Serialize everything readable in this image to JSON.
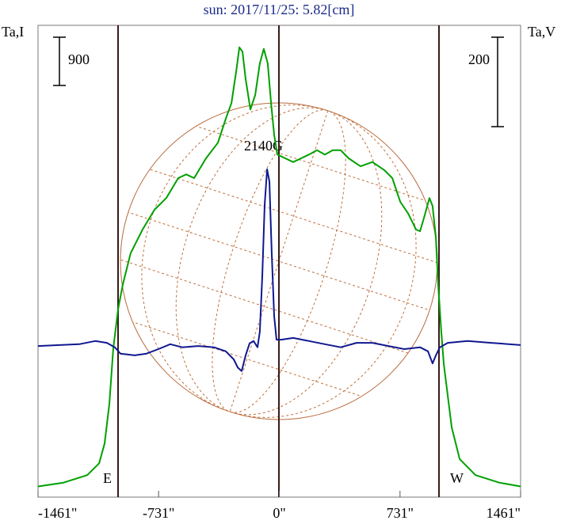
{
  "chart_data": {
    "type": "line",
    "title": "sun: 2017/11/25: 5.82[cm]",
    "y_label": "Ta,I",
    "y2_label": "Ta,V",
    "annotation": "2140G",
    "east_label": "E",
    "west_label": "W",
    "i_scale": 900,
    "v_scale": 200,
    "xlim": [
      -1461,
      1461
    ],
    "xticks": [
      {
        "value": -1461,
        "label": "-1461\""
      },
      {
        "value": -731,
        "label": "-731\""
      },
      {
        "value": 0,
        "label": "0\""
      },
      {
        "value": 731,
        "label": "731\""
      },
      {
        "value": 1461,
        "label": "1461\""
      }
    ],
    "ylim": [
      -200,
      8600
    ],
    "y2lim": [
      -340,
      715
    ],
    "series": [
      {
        "color": "#00a000",
        "axis": "y",
        "x": [
          -1461,
          -1307,
          -1163,
          -1091,
          -1058,
          -1029,
          -1005,
          -976,
          -948,
          -900,
          -828,
          -756,
          -684,
          -612,
          -564,
          -516,
          -444,
          -372,
          -324,
          -290,
          -261,
          -242,
          -223,
          -204,
          -175,
          -146,
          -118,
          -94,
          -70,
          -50,
          -31,
          -12,
          36,
          84,
          132,
          180,
          228,
          276,
          324,
          372,
          420,
          492,
          564,
          636,
          684,
          732,
          780,
          828,
          852,
          876,
          909,
          928,
          948,
          962,
          981,
          996,
          1020,
          1044,
          1092,
          1188,
          1332,
          1461
        ],
        "values": [
          0,
          70,
          210,
          430,
          800,
          1540,
          2580,
          3310,
          3760,
          4350,
          4790,
          5160,
          5380,
          5750,
          5820,
          5750,
          6120,
          6410,
          6860,
          7150,
          7740,
          8190,
          8110,
          7600,
          7030,
          7300,
          7890,
          8160,
          7890,
          7150,
          6560,
          6190,
          6120,
          6050,
          6120,
          6190,
          6270,
          6190,
          6270,
          6270,
          6120,
          5970,
          6050,
          5900,
          5750,
          5310,
          5090,
          4790,
          4760,
          5010,
          5380,
          5230,
          4640,
          3760,
          2870,
          2280,
          1690,
          1100,
          510,
          210,
          70,
          0
        ]
      },
      {
        "color": "#101890",
        "axis": "y2",
        "x": [
          -1461,
          -1211,
          -1115,
          -1044,
          -996,
          -962,
          -876,
          -804,
          -732,
          -660,
          -588,
          -492,
          -396,
          -324,
          -276,
          -252,
          -228,
          -204,
          -180,
          -156,
          -132,
          -118,
          -103,
          -89,
          -74,
          -60,
          -46,
          -31,
          -17,
          12,
          84,
          180,
          276,
          372,
          468,
          564,
          660,
          756,
          852,
          900,
          928,
          948,
          972,
          1020,
          1140,
          1284,
          1461
        ],
        "values": [
          -2,
          2,
          9,
          5,
          -5,
          -19,
          -23,
          -19,
          -9,
          2,
          -5,
          -2,
          -5,
          -14,
          -32,
          -50,
          -58,
          -23,
          4,
          9,
          -5,
          30,
          154,
          313,
          393,
          366,
          207,
          65,
          12,
          12,
          16,
          9,
          2,
          -5,
          5,
          5,
          -2,
          -9,
          -5,
          -14,
          -41,
          -23,
          -5,
          5,
          9,
          5,
          0
        ]
      }
    ]
  }
}
